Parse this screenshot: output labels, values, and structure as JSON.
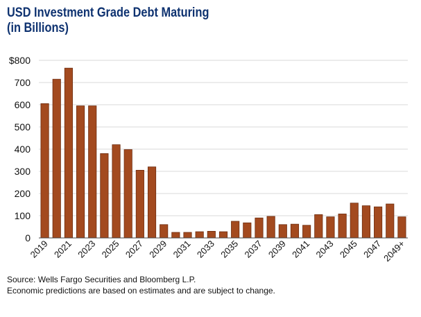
{
  "title": {
    "line1": "USD Investment Grade Debt Maturing",
    "line2": "(in Billions)"
  },
  "colors": {
    "bar_fill": "#a34a1f",
    "bar_edge": "#6e2d10",
    "title": "#0e3270",
    "grid": "#d8d8d8"
  },
  "chart_data": {
    "type": "bar",
    "title": "USD Investment Grade Debt Maturing (in Billions)",
    "xlabel": "",
    "ylabel": "",
    "ylim": [
      0,
      800
    ],
    "yticks": [
      "0",
      "100",
      "200",
      "300",
      "400",
      "500",
      "600",
      "700",
      "$800"
    ],
    "grid": true,
    "categories": [
      "2019",
      "2020",
      "2021",
      "2022",
      "2023",
      "2024",
      "2025",
      "2026",
      "2027",
      "2028",
      "2029",
      "2030",
      "2031",
      "2032",
      "2033",
      "2034",
      "2035",
      "2036",
      "2037",
      "2038",
      "2039",
      "2040",
      "2041",
      "2042",
      "2043",
      "2044",
      "2045",
      "2046",
      "2047",
      "2048",
      "2049+"
    ],
    "xtick_labels": [
      "2019",
      "",
      "2021",
      "",
      "2023",
      "",
      "2025",
      "",
      "2027",
      "",
      "2029",
      "",
      "2031",
      "",
      "2033",
      "",
      "2035",
      "",
      "2037",
      "",
      "2039",
      "",
      "2041",
      "",
      "2043",
      "",
      "2045",
      "",
      "2047",
      "",
      "2049+"
    ],
    "values": [
      605,
      715,
      765,
      595,
      595,
      380,
      420,
      398,
      305,
      320,
      60,
      25,
      25,
      28,
      30,
      28,
      75,
      68,
      90,
      97,
      60,
      62,
      57,
      105,
      95,
      108,
      157,
      145,
      140,
      153,
      95
    ]
  },
  "footnote": {
    "source": "Source: Wells Fargo Securities and Bloomberg L.P.",
    "disclaimer": "Economic predictions are based on estimates and are subject to change."
  }
}
